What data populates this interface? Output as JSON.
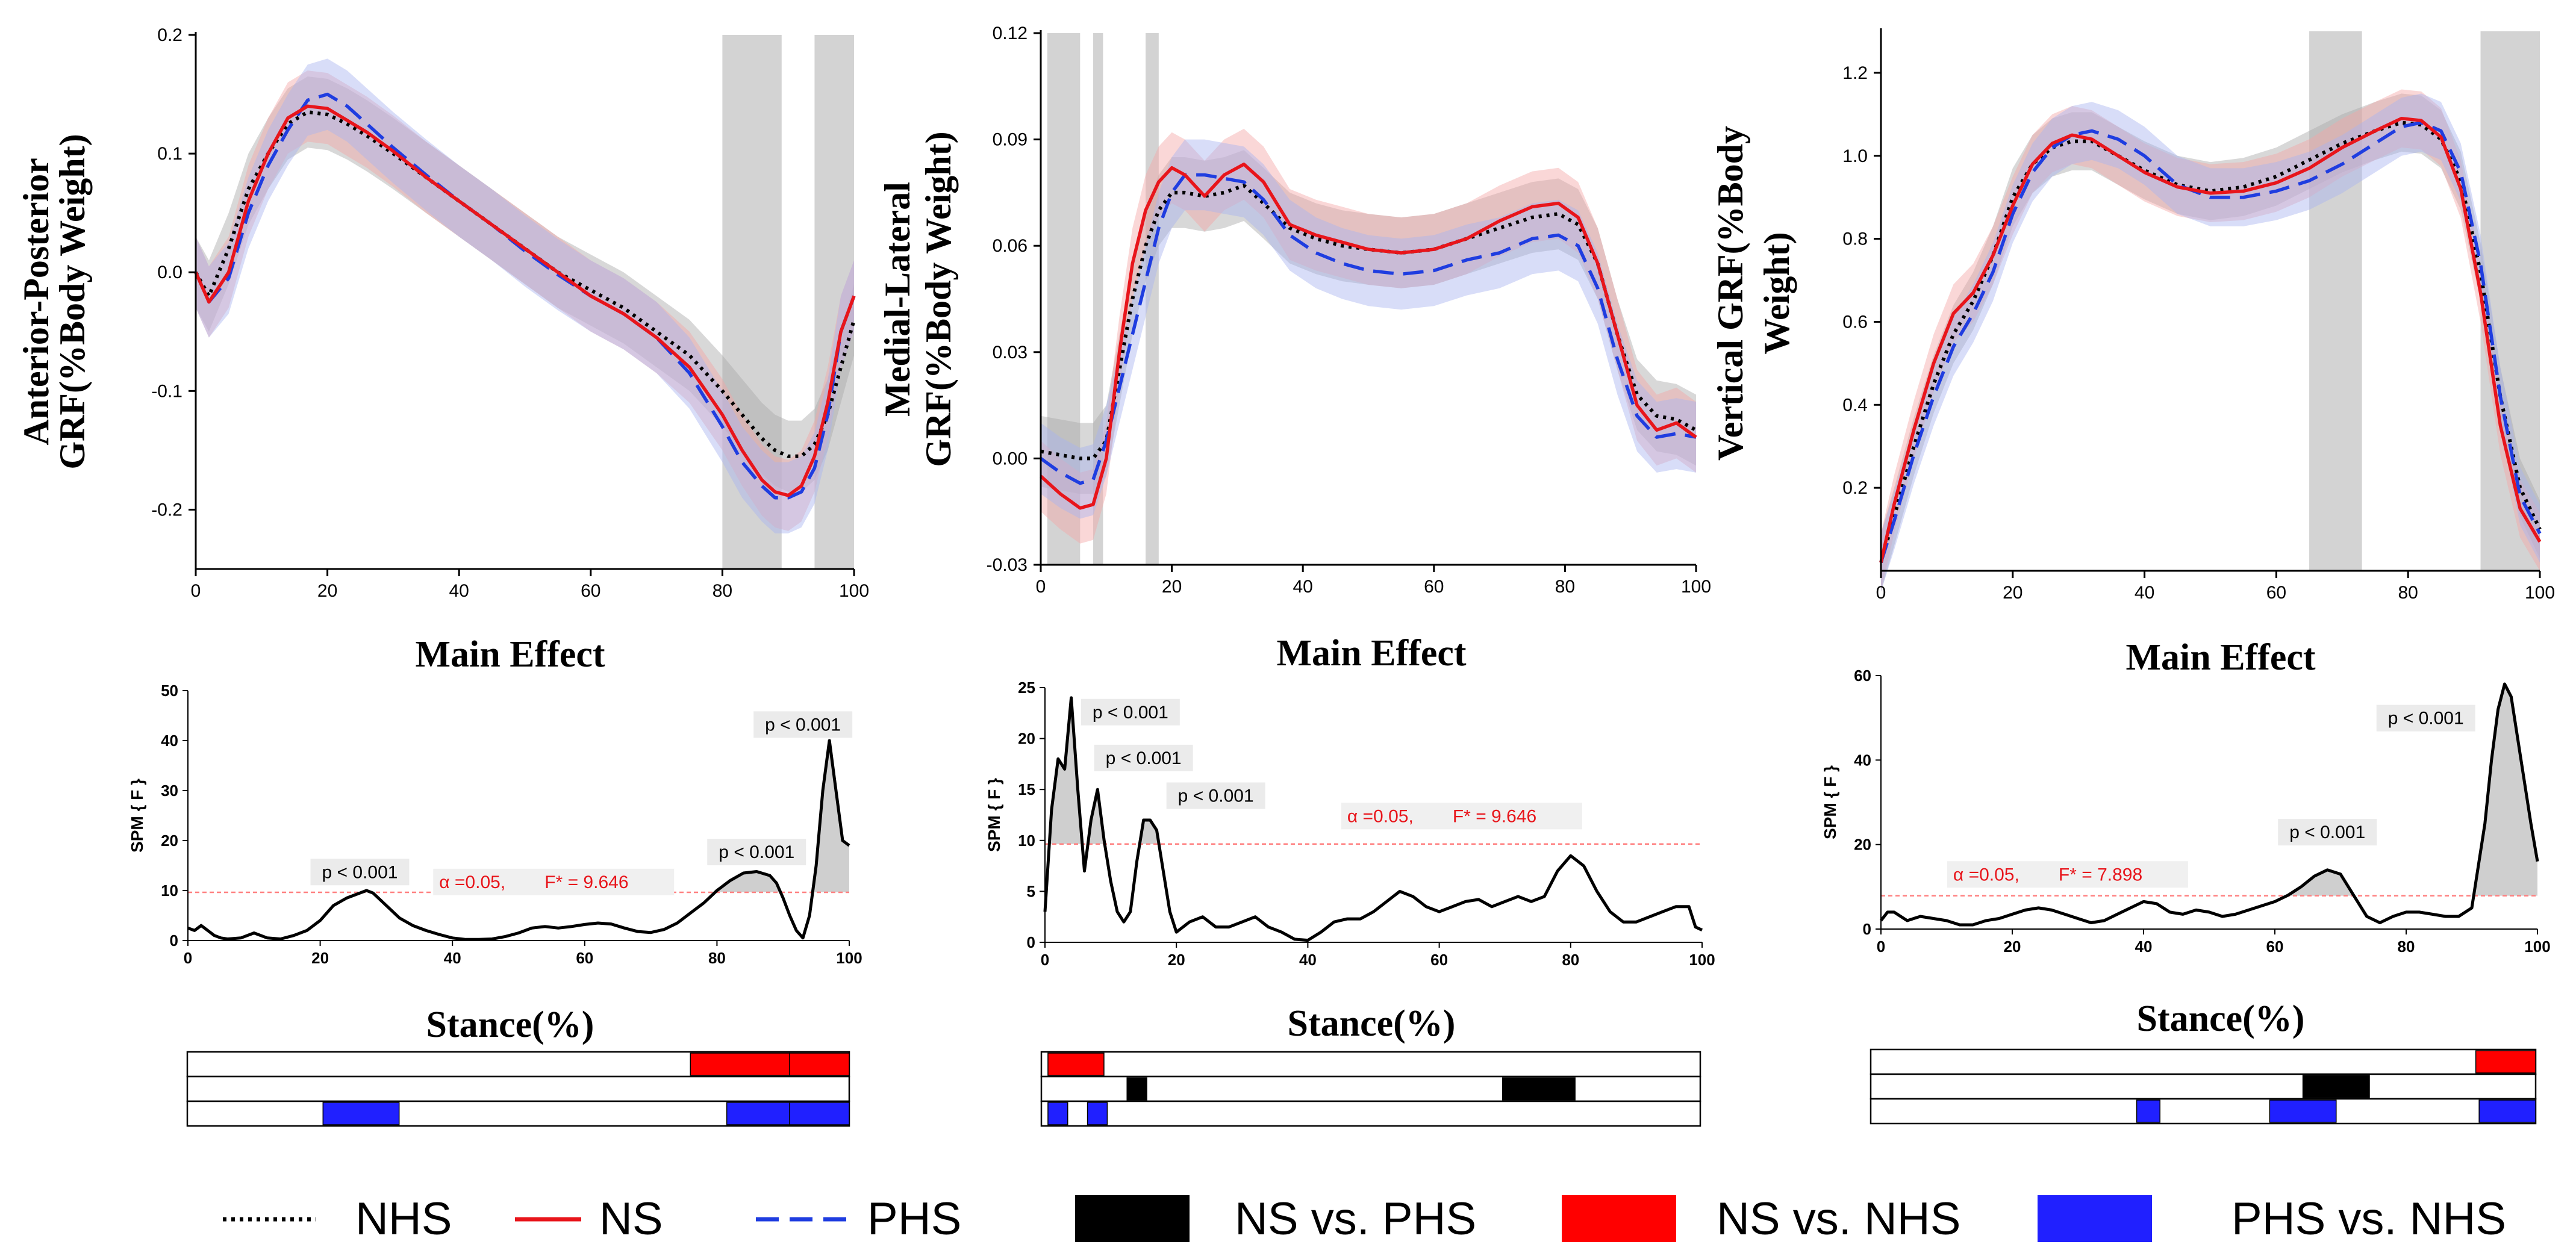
{
  "legend": {
    "nhs": "NHS",
    "ns": "NS",
    "phs": "PHS",
    "ns_vs_phs": "NS vs. PHS",
    "ns_vs_nhs": "NS vs. NHS",
    "phs_vs_nhs": "PHS vs. NHS"
  },
  "colors": {
    "nhs": "#000000",
    "ns": "#e8151b",
    "phs": "#1f3de0",
    "nhs_band": "#a9a9a9",
    "ns_band": "#f4a6a6",
    "phs_band": "#a9b4f0",
    "sig_shade": "#d3d3d3",
    "ns_vs_phs": "#000000",
    "ns_vs_nhs": "#ff0000",
    "phs_vs_nhs": "#2020ff",
    "threshold": "#ff8080"
  },
  "chart_data": [
    {
      "id": "ap",
      "type": "line",
      "ylabel_line1": "Anterior-Posterior",
      "ylabel_line2": "GRF(%Body Weight)",
      "xlim": [
        0,
        100
      ],
      "ylim": [
        -0.25,
        0.2
      ],
      "xticks": [
        0,
        20,
        40,
        60,
        80,
        100
      ],
      "yticks": [
        -0.2,
        -0.1,
        0.0,
        0.1,
        0.2
      ],
      "ytick_labels": [
        "-0.2",
        "-0.1",
        "0.0",
        "0.1",
        "0.2"
      ],
      "sig_regions": [
        [
          80,
          89
        ],
        [
          94,
          100
        ]
      ],
      "band_halfwidth": 0.03,
      "x": [
        0,
        2,
        5,
        8,
        11,
        14,
        17,
        20,
        23,
        26,
        30,
        35,
        40,
        45,
        50,
        55,
        60,
        65,
        70,
        75,
        80,
        83,
        86,
        88,
        90,
        92,
        94,
        96,
        98,
        100
      ],
      "series": [
        {
          "name": "NHS",
          "values": [
            0.0,
            -0.02,
            0.02,
            0.07,
            0.1,
            0.125,
            0.135,
            0.133,
            0.125,
            0.115,
            0.1,
            0.08,
            0.06,
            0.04,
            0.02,
            0.0,
            -0.015,
            -0.03,
            -0.05,
            -0.07,
            -0.1,
            -0.12,
            -0.14,
            -0.15,
            -0.155,
            -0.155,
            -0.145,
            -0.12,
            -0.08,
            -0.04
          ]
        },
        {
          "name": "NS",
          "values": [
            0.0,
            -0.025,
            0.0,
            0.06,
            0.1,
            0.13,
            0.14,
            0.138,
            0.128,
            0.118,
            0.102,
            0.08,
            0.06,
            0.04,
            0.02,
            0.0,
            -0.02,
            -0.035,
            -0.055,
            -0.08,
            -0.12,
            -0.15,
            -0.175,
            -0.185,
            -0.188,
            -0.18,
            -0.155,
            -0.11,
            -0.05,
            -0.02
          ]
        },
        {
          "name": "PHS",
          "values": [
            0.0,
            -0.025,
            -0.005,
            0.05,
            0.09,
            0.12,
            0.145,
            0.15,
            0.14,
            0.125,
            0.105,
            0.082,
            0.06,
            0.04,
            0.018,
            -0.002,
            -0.02,
            -0.035,
            -0.055,
            -0.085,
            -0.13,
            -0.16,
            -0.18,
            -0.19,
            -0.19,
            -0.185,
            -0.165,
            -0.12,
            -0.05,
            -0.02
          ]
        }
      ],
      "spm": {
        "title": "Main Effect",
        "ylabel": "SPM { F }",
        "xlabel": "Stance(%)",
        "xlim": [
          0,
          100
        ],
        "ylim": [
          0,
          50
        ],
        "xticks": [
          0,
          20,
          40,
          60,
          80,
          100
        ],
        "yticks": [
          0,
          10,
          20,
          30,
          40,
          50
        ],
        "threshold": 9.646,
        "alpha_text": "α  =0.05,",
        "fstar_text": "F* = 9.646",
        "alpha_at": [
          38,
          10.5
        ],
        "x": [
          0,
          1,
          2,
          3,
          4,
          5,
          6,
          8,
          10,
          12,
          14,
          16,
          18,
          20,
          22,
          24,
          26,
          27,
          28,
          30,
          32,
          34,
          36,
          38,
          40,
          42,
          44,
          46,
          48,
          50,
          52,
          54,
          56,
          58,
          60,
          62,
          64,
          66,
          68,
          70,
          72,
          74,
          76,
          78,
          80,
          82,
          84,
          86,
          88,
          89,
          90,
          91,
          92,
          93,
          94,
          95,
          96,
          97,
          98,
          99,
          100
        ],
        "f": [
          2.5,
          2,
          3,
          2,
          1,
          0.5,
          0.3,
          0.5,
          1.5,
          0.5,
          0.3,
          1,
          2,
          4,
          7,
          8.5,
          9.5,
          10,
          9.5,
          7,
          4.5,
          3,
          2,
          1.2,
          0.5,
          0.2,
          0.2,
          0.3,
          0.8,
          1.5,
          2.5,
          2.8,
          2.5,
          2.8,
          3.2,
          3.5,
          3.3,
          2.5,
          1.8,
          1.6,
          2.2,
          3.5,
          5.5,
          7.5,
          10,
          12,
          13.5,
          13.8,
          13,
          11.5,
          8.5,
          5,
          2,
          0.5,
          5,
          15,
          30,
          40,
          30,
          20,
          19
        ],
        "annotations": [
          {
            "text": "p < 0.001",
            "x": 26,
            "y": 12.5
          },
          {
            "text": "p < 0.001",
            "x": 86,
            "y": 16.5
          },
          {
            "text": "p < 0.001",
            "x": 93,
            "y": 42
          }
        ],
        "comparison_rows": [
          {
            "comparison": "NS vs. NHS",
            "intervals": [
              [
                76,
                91
              ],
              [
                91,
                100
              ]
            ]
          },
          {
            "comparison": "NS vs. PHS",
            "intervals": []
          },
          {
            "comparison": "PHS vs. NHS",
            "intervals": [
              [
                20.5,
                32
              ],
              [
                81.5,
                91
              ],
              [
                91,
                100
              ]
            ]
          }
        ]
      }
    },
    {
      "id": "ml",
      "type": "line",
      "ylabel_line1": "Medial-Lateral",
      "ylabel_line2": "GRF(%Body Weight)",
      "xlim": [
        0,
        100
      ],
      "ylim": [
        -0.03,
        0.12
      ],
      "xticks": [
        0,
        20,
        40,
        60,
        80,
        100
      ],
      "yticks": [
        -0.03,
        0.0,
        0.03,
        0.06,
        0.09,
        0.12
      ],
      "ytick_labels": [
        "-0.03",
        "0.00",
        "0.03",
        "0.06",
        "0.09",
        "0.12"
      ],
      "sig_regions": [
        [
          1,
          6
        ],
        [
          8,
          9.5
        ],
        [
          16,
          18
        ]
      ],
      "band_halfwidth": 0.01,
      "x": [
        0,
        3,
        6,
        8,
        10,
        12,
        14,
        16,
        18,
        20,
        22,
        25,
        28,
        31,
        34,
        38,
        42,
        46,
        50,
        55,
        60,
        65,
        70,
        75,
        79,
        82,
        85,
        88,
        91,
        94,
        97,
        100
      ],
      "series": [
        {
          "name": "NHS",
          "values": [
            0.002,
            0.001,
            0.0,
            0.0,
            0.005,
            0.025,
            0.045,
            0.06,
            0.07,
            0.075,
            0.075,
            0.074,
            0.075,
            0.077,
            0.072,
            0.065,
            0.062,
            0.06,
            0.059,
            0.058,
            0.059,
            0.062,
            0.065,
            0.068,
            0.069,
            0.066,
            0.055,
            0.035,
            0.018,
            0.012,
            0.011,
            0.008
          ]
        },
        {
          "name": "NS",
          "values": [
            -0.005,
            -0.01,
            -0.014,
            -0.013,
            0.0,
            0.03,
            0.055,
            0.07,
            0.078,
            0.082,
            0.08,
            0.074,
            0.08,
            0.083,
            0.078,
            0.066,
            0.063,
            0.061,
            0.059,
            0.058,
            0.059,
            0.062,
            0.067,
            0.071,
            0.072,
            0.068,
            0.055,
            0.035,
            0.015,
            0.008,
            0.01,
            0.006
          ]
        },
        {
          "name": "PHS",
          "values": [
            0.0,
            -0.004,
            -0.007,
            -0.006,
            0.005,
            0.02,
            0.035,
            0.05,
            0.065,
            0.075,
            0.08,
            0.08,
            0.079,
            0.078,
            0.073,
            0.063,
            0.058,
            0.055,
            0.053,
            0.052,
            0.053,
            0.056,
            0.058,
            0.062,
            0.063,
            0.06,
            0.048,
            0.028,
            0.012,
            0.006,
            0.007,
            0.006
          ]
        }
      ],
      "spm": {
        "title": "Main Effect",
        "ylabel": "SPM { F }",
        "xlabel": "Stance(%)",
        "xlim": [
          0,
          100
        ],
        "ylim": [
          0,
          25
        ],
        "xticks": [
          0,
          20,
          40,
          60,
          80,
          100
        ],
        "yticks": [
          0,
          5,
          10,
          15,
          20,
          25
        ],
        "threshold": 9.646,
        "alpha_text": "α  =0.05,",
        "fstar_text": "F* = 9.646",
        "alpha_at": [
          46,
          11.8
        ],
        "x": [
          0,
          1,
          2,
          3,
          4,
          5,
          6,
          7,
          8,
          9,
          10,
          11,
          12,
          13,
          14,
          15,
          16,
          17,
          18,
          19,
          20,
          22,
          24,
          26,
          28,
          30,
          32,
          34,
          36,
          38,
          40,
          42,
          44,
          46,
          48,
          50,
          52,
          54,
          56,
          58,
          60,
          62,
          64,
          66,
          68,
          70,
          72,
          74,
          76,
          78,
          80,
          82,
          84,
          86,
          88,
          90,
          92,
          94,
          96,
          98,
          99,
          100
        ],
        "f": [
          3,
          13,
          18,
          17,
          24,
          15,
          7,
          12,
          15,
          10,
          6,
          3,
          2,
          3,
          8,
          12,
          12,
          11,
          7,
          3,
          1,
          2,
          2.5,
          1.5,
          1.5,
          2,
          2.5,
          1.5,
          1,
          0.3,
          0.2,
          1,
          2,
          2.3,
          2.3,
          3,
          4,
          5,
          4.5,
          3.5,
          3,
          3.5,
          4,
          4.2,
          3.5,
          4,
          4.5,
          4,
          4.5,
          7,
          8.5,
          7.5,
          5,
          3,
          2,
          2,
          2.5,
          3,
          3.5,
          3.5,
          1.5,
          1.2
        ],
        "annotations": [
          {
            "text": "p < 0.001",
            "x": 13,
            "y": 22
          },
          {
            "text": "p < 0.001",
            "x": 15,
            "y": 17.5
          },
          {
            "text": "p < 0.001",
            "x": 26,
            "y": 13.8
          }
        ],
        "comparison_rows": [
          {
            "comparison": "NS vs. NHS",
            "intervals": [
              [
                1,
                9.5
              ]
            ]
          },
          {
            "comparison": "NS vs. PHS",
            "intervals": [
              [
                13,
                16
              ],
              [
                70,
                81
              ]
            ]
          },
          {
            "comparison": "PHS vs. NHS",
            "intervals": [
              [
                1,
                4
              ],
              [
                7,
                10
              ]
            ]
          }
        ]
      }
    },
    {
      "id": "v",
      "type": "line",
      "ylabel_line1": "Vertical GRF(%Body",
      "ylabel_line2": "Weight)",
      "xlim": [
        0,
        100
      ],
      "ylim": [
        0,
        1.3
      ],
      "xticks": [
        0,
        20,
        40,
        60,
        80,
        100
      ],
      "yticks": [
        0.2,
        0.4,
        0.6,
        0.8,
        1.0,
        1.2
      ],
      "ytick_labels": [
        "0.2",
        "0.4",
        "0.6",
        "0.8",
        "1.0",
        "1.2"
      ],
      "sig_regions": [
        [
          65,
          73
        ],
        [
          91,
          100
        ]
      ],
      "band_halfwidth": 0.07,
      "x": [
        0,
        2,
        5,
        8,
        11,
        14,
        17,
        20,
        23,
        26,
        29,
        32,
        36,
        40,
        45,
        50,
        55,
        60,
        65,
        70,
        75,
        79,
        82,
        85,
        88,
        91,
        94,
        97,
        100
      ],
      "series": [
        {
          "name": "NHS",
          "values": [
            0.02,
            0.13,
            0.3,
            0.45,
            0.57,
            0.65,
            0.76,
            0.9,
            0.98,
            1.02,
            1.035,
            1.035,
            1.0,
            0.965,
            0.93,
            0.915,
            0.925,
            0.95,
            0.99,
            1.03,
            1.06,
            1.08,
            1.075,
            1.04,
            0.94,
            0.72,
            0.42,
            0.2,
            0.1
          ]
        },
        {
          "name": "NS",
          "values": [
            0.02,
            0.16,
            0.34,
            0.5,
            0.62,
            0.67,
            0.76,
            0.88,
            0.98,
            1.03,
            1.05,
            1.04,
            1.0,
            0.96,
            0.925,
            0.91,
            0.915,
            0.935,
            0.97,
            1.02,
            1.06,
            1.09,
            1.085,
            1.045,
            0.92,
            0.67,
            0.35,
            0.15,
            0.07
          ]
        },
        {
          "name": "PHS",
          "values": [
            0.02,
            0.12,
            0.28,
            0.42,
            0.54,
            0.62,
            0.72,
            0.86,
            0.96,
            1.02,
            1.05,
            1.06,
            1.04,
            1.0,
            0.93,
            0.9,
            0.9,
            0.915,
            0.94,
            0.98,
            1.03,
            1.07,
            1.08,
            1.06,
            0.96,
            0.74,
            0.42,
            0.18,
            0.09
          ]
        }
      ],
      "spm": {
        "title": "Main Effect",
        "ylabel": "SPM { F }",
        "xlabel": "Stance(%)",
        "xlim": [
          0,
          100
        ],
        "ylim": [
          0,
          60
        ],
        "xticks": [
          0,
          20,
          40,
          60,
          80,
          100
        ],
        "yticks": [
          0,
          20,
          40,
          60
        ],
        "threshold": 7.898,
        "alpha_text": "α  =0.05,",
        "fstar_text": "F* = 7.898",
        "alpha_at": [
          11,
          11.5
        ],
        "x": [
          0,
          1,
          2,
          4,
          6,
          8,
          10,
          12,
          14,
          16,
          18,
          20,
          22,
          24,
          26,
          28,
          30,
          32,
          34,
          36,
          38,
          40,
          42,
          44,
          46,
          48,
          50,
          52,
          54,
          56,
          58,
          60,
          62,
          64,
          66,
          68,
          70,
          72,
          74,
          76,
          78,
          80,
          82,
          84,
          86,
          88,
          90,
          92,
          93,
          94,
          95,
          96,
          97,
          98,
          99,
          100
        ],
        "f": [
          2,
          4,
          4,
          2,
          3,
          2.5,
          2,
          1,
          1,
          2,
          2.5,
          3.5,
          4.5,
          5,
          4.5,
          3.5,
          2.5,
          1.5,
          2,
          3.5,
          5,
          6.5,
          6,
          4,
          3.5,
          4.5,
          4,
          3,
          3.5,
          4.5,
          5.5,
          6.5,
          8,
          10,
          12.5,
          14,
          13,
          8,
          3,
          1.5,
          3,
          4,
          4,
          3.5,
          3,
          3,
          5,
          25,
          40,
          52,
          58,
          55,
          45,
          35,
          25,
          16
        ],
        "annotations": [
          {
            "text": "p < 0.001",
            "x": 68,
            "y": 21.5
          },
          {
            "text": "p < 0.001",
            "x": 83,
            "y": 48.5
          }
        ],
        "comparison_rows": [
          {
            "comparison": "NS vs. NHS",
            "intervals": [
              [
                91,
                100
              ]
            ]
          },
          {
            "comparison": "NS vs. PHS",
            "intervals": [
              [
                65,
                75
              ]
            ]
          },
          {
            "comparison": "PHS vs. NHS",
            "intervals": [
              [
                40,
                43.5
              ],
              [
                60,
                70
              ],
              [
                91.5,
                100
              ]
            ]
          }
        ]
      }
    }
  ]
}
